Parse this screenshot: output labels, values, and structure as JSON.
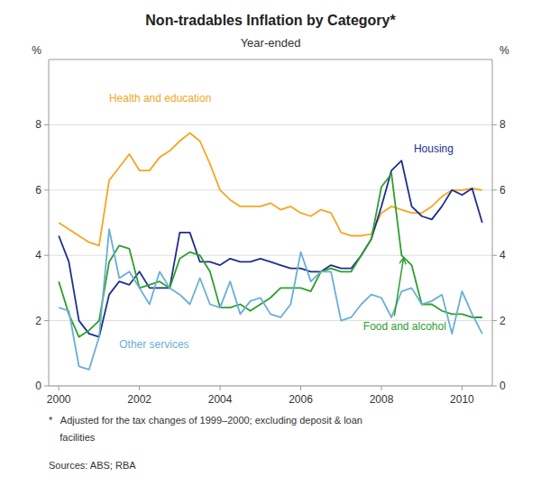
{
  "chart_data": {
    "type": "line",
    "title": "Non-tradables Inflation by Category*",
    "subtitle": "Year-ended",
    "ylabel": "%",
    "y2label": "%",
    "footnotes": [
      "*   Adjusted for the tax changes of 1999–2000; excluding deposit & loan",
      "    facilities"
    ],
    "source": "Sources: ABS; RBA",
    "x": [
      2000.0,
      2000.25,
      2000.5,
      2000.75,
      2001.0,
      2001.25,
      2001.5,
      2001.75,
      2002.0,
      2002.25,
      2002.5,
      2002.75,
      2003.0,
      2003.25,
      2003.5,
      2003.75,
      2004.0,
      2004.25,
      2004.5,
      2004.75,
      2005.0,
      2005.25,
      2005.5,
      2005.75,
      2006.0,
      2006.25,
      2006.5,
      2006.75,
      2007.0,
      2007.25,
      2007.5,
      2007.75,
      2008.0,
      2008.25,
      2008.5,
      2008.75,
      2009.0,
      2009.25,
      2009.5,
      2009.75,
      2010.0,
      2010.25,
      2010.5
    ],
    "series": [
      {
        "name": "Health and education",
        "color": "#f5a623",
        "values": [
          5.0,
          4.8,
          4.6,
          4.4,
          4.3,
          6.3,
          6.7,
          7.1,
          6.6,
          6.6,
          7.0,
          7.2,
          7.5,
          7.75,
          7.5,
          6.8,
          6.0,
          5.7,
          5.5,
          5.5,
          5.5,
          5.6,
          5.4,
          5.5,
          5.3,
          5.2,
          5.4,
          5.3,
          4.7,
          4.6,
          4.6,
          4.65,
          5.3,
          5.5,
          5.4,
          5.3,
          5.3,
          5.5,
          5.8,
          6.0,
          6.0,
          6.05,
          6.0
        ]
      },
      {
        "name": "Housing",
        "color": "#1f2f8c",
        "values": [
          4.6,
          3.8,
          2.0,
          1.6,
          1.5,
          2.8,
          3.2,
          3.1,
          3.5,
          3.0,
          3.0,
          3.0,
          4.7,
          4.7,
          3.8,
          3.8,
          3.7,
          3.9,
          3.8,
          3.8,
          3.9,
          3.8,
          3.7,
          3.6,
          3.6,
          3.5,
          3.5,
          3.7,
          3.6,
          3.6,
          4.0,
          4.5,
          5.5,
          6.6,
          6.9,
          5.5,
          5.2,
          5.1,
          5.5,
          6.0,
          5.85,
          6.05,
          5.0
        ]
      },
      {
        "name": "Food and alcohol",
        "color": "#2ca02c",
        "values": [
          3.2,
          2.2,
          1.5,
          1.7,
          2.0,
          3.8,
          4.3,
          4.2,
          3.0,
          3.1,
          3.2,
          3.0,
          3.9,
          4.1,
          4.0,
          3.5,
          2.4,
          2.4,
          2.5,
          2.3,
          2.5,
          2.7,
          3.0,
          3.0,
          3.0,
          2.9,
          3.5,
          3.6,
          3.5,
          3.5,
          4.0,
          4.5,
          6.1,
          6.5,
          4.0,
          3.7,
          2.5,
          2.5,
          2.3,
          2.2,
          2.2,
          2.1,
          2.1
        ]
      },
      {
        "name": "Other services",
        "color": "#6baed6",
        "values": [
          2.4,
          2.3,
          0.6,
          0.5,
          1.5,
          4.8,
          3.3,
          3.5,
          3.0,
          2.5,
          3.5,
          3.0,
          2.8,
          2.5,
          3.3,
          2.5,
          2.4,
          3.2,
          2.2,
          2.6,
          2.7,
          2.2,
          2.1,
          2.5,
          4.1,
          3.2,
          3.5,
          3.5,
          2.0,
          2.1,
          2.5,
          2.8,
          2.7,
          2.1,
          2.9,
          3.0,
          2.5,
          2.6,
          2.8,
          1.6,
          2.9,
          2.2,
          1.6
        ]
      }
    ],
    "xlim": [
      1999.75,
      2010.75
    ],
    "xticks": [
      2000,
      2002,
      2004,
      2006,
      2008,
      2010
    ],
    "ylim": [
      0,
      10
    ],
    "yticks": [
      0,
      2,
      4,
      6,
      8
    ],
    "y2lim": [
      0,
      10
    ],
    "y2ticks": [
      0,
      2,
      4,
      6,
      8
    ],
    "grid": true
  }
}
